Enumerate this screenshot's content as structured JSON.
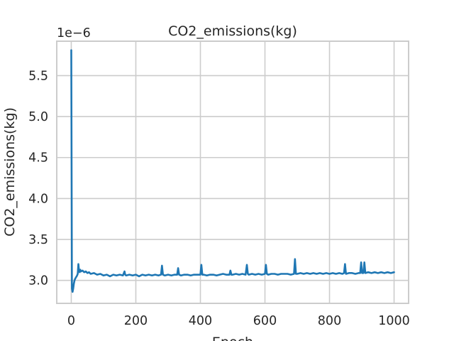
{
  "chart_data": {
    "type": "line",
    "title": "CO2_emissions(kg)",
    "xlabel": "Epoch",
    "ylabel": "CO2_emissions(kg)",
    "y_offset_label": "1e−6",
    "xlim": [
      -45,
      1045
    ],
    "ylim": [
      2.72,
      5.92
    ],
    "x_ticks": [
      0,
      200,
      400,
      600,
      800,
      1000
    ],
    "x_tick_labels": [
      "0",
      "200",
      "400",
      "600",
      "800",
      "1000"
    ],
    "y_ticks": [
      3.0,
      3.5,
      4.0,
      4.5,
      5.0,
      5.5
    ],
    "y_tick_labels": [
      "3.0",
      "3.5",
      "4.0",
      "4.5",
      "5.0",
      "5.5"
    ],
    "grid": true,
    "line_color": "#1f77b4",
    "series": [
      {
        "x": [
          0,
          2,
          4,
          6,
          8,
          10,
          12,
          15,
          18,
          20,
          22,
          24,
          26,
          28,
          30,
          35,
          40,
          45,
          50,
          55,
          60,
          70,
          80,
          90,
          100,
          110,
          120,
          130,
          140,
          150,
          160,
          165,
          167,
          170,
          180,
          190,
          200,
          210,
          220,
          230,
          240,
          250,
          260,
          270,
          278,
          281,
          284,
          290,
          300,
          310,
          320,
          328,
          331,
          334,
          340,
          350,
          360,
          370,
          380,
          390,
          400,
          403,
          406,
          410,
          420,
          430,
          440,
          450,
          460,
          470,
          480,
          490,
          493,
          496,
          500,
          510,
          520,
          530,
          540,
          544,
          547,
          550,
          560,
          570,
          580,
          590,
          600,
          603,
          606,
          610,
          620,
          630,
          640,
          650,
          660,
          670,
          680,
          690,
          693,
          696,
          700,
          710,
          720,
          730,
          740,
          750,
          760,
          770,
          780,
          790,
          800,
          810,
          820,
          830,
          840,
          845,
          848,
          851,
          860,
          870,
          880,
          890,
          895,
          898,
          901,
          905,
          908,
          911,
          920,
          930,
          940,
          950,
          960,
          970,
          980,
          990,
          1000
        ],
        "y": [
          5.81,
          2.9,
          2.86,
          2.9,
          2.96,
          3.0,
          3.02,
          3.04,
          3.06,
          3.08,
          3.2,
          3.12,
          3.1,
          3.13,
          3.11,
          3.12,
          3.1,
          3.11,
          3.09,
          3.1,
          3.08,
          3.09,
          3.07,
          3.08,
          3.06,
          3.07,
          3.05,
          3.07,
          3.06,
          3.07,
          3.06,
          3.11,
          3.07,
          3.06,
          3.07,
          3.06,
          3.07,
          3.05,
          3.07,
          3.06,
          3.07,
          3.06,
          3.07,
          3.06,
          3.07,
          3.18,
          3.07,
          3.06,
          3.07,
          3.06,
          3.07,
          3.07,
          3.15,
          3.07,
          3.06,
          3.07,
          3.07,
          3.06,
          3.07,
          3.07,
          3.07,
          3.19,
          3.07,
          3.07,
          3.06,
          3.07,
          3.07,
          3.06,
          3.07,
          3.08,
          3.07,
          3.07,
          3.12,
          3.07,
          3.07,
          3.08,
          3.07,
          3.08,
          3.07,
          3.19,
          3.08,
          3.07,
          3.08,
          3.07,
          3.08,
          3.07,
          3.08,
          3.19,
          3.08,
          3.07,
          3.08,
          3.08,
          3.07,
          3.08,
          3.08,
          3.08,
          3.07,
          3.08,
          3.26,
          3.08,
          3.08,
          3.09,
          3.08,
          3.09,
          3.08,
          3.09,
          3.08,
          3.09,
          3.08,
          3.09,
          3.08,
          3.09,
          3.08,
          3.09,
          3.08,
          3.09,
          3.2,
          3.08,
          3.09,
          3.09,
          3.08,
          3.09,
          3.09,
          3.22,
          3.09,
          3.09,
          3.22,
          3.09,
          3.1,
          3.09,
          3.1,
          3.09,
          3.1,
          3.09,
          3.1,
          3.09,
          3.1
        ]
      }
    ]
  }
}
